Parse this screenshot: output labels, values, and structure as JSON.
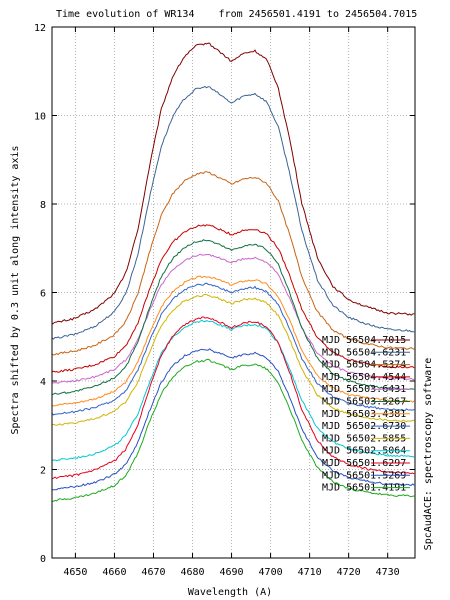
{
  "chart_data": {
    "type": "line",
    "title": "Time evolution of WR134    from 2456501.4191 to 2456504.7015",
    "xlabel": "Wavelength (A)",
    "ylabel": "Spectra shifted by 0.3 unit along intensity axis",
    "side_note": "SpcAudACE: spectroscopy software",
    "xlim": [
      4644,
      4737
    ],
    "ylim": [
      0,
      12
    ],
    "xticks": [
      4650,
      4660,
      4670,
      4680,
      4690,
      4700,
      4710,
      4720,
      4730
    ],
    "yticks": [
      0,
      2,
      4,
      6,
      8,
      10,
      12
    ],
    "grid": true,
    "legend_position": "right",
    "shape": {
      "x": [
        4644,
        4650,
        4655,
        4660,
        4663,
        4666,
        4669,
        4672,
        4675,
        4678,
        4681,
        4684,
        4687,
        4690,
        4693,
        4696,
        4699,
        4702,
        4705,
        4708,
        4712,
        4716,
        4720,
        4725,
        4730,
        4737
      ],
      "y": [
        0,
        0.06,
        0.16,
        0.34,
        0.58,
        1.06,
        1.78,
        2.42,
        2.8,
        3.02,
        3.14,
        3.17,
        3.07,
        2.96,
        3.05,
        3.08,
        2.98,
        2.66,
        2.06,
        1.36,
        0.74,
        0.42,
        0.27,
        0.18,
        0.12,
        0.1
      ]
    },
    "series": [
      {
        "label": "MJD 56504.7015",
        "color": "#800000",
        "baseline": 5.3,
        "amp": 2.0
      },
      {
        "label": "MJD 56504.6231",
        "color": "#3c6496",
        "baseline": 4.95,
        "amp": 1.8
      },
      {
        "label": "MJD 56504.5374",
        "color": "#c86414",
        "baseline": 4.6,
        "amp": 1.3
      },
      {
        "label": "MJD 56504.4544",
        "color": "#c80000",
        "baseline": 4.2,
        "amp": 1.05
      },
      {
        "label": "MJD 56503.6431",
        "color": "#cc66cc",
        "baseline": 3.95,
        "amp": 0.92
      },
      {
        "label": "MJD 56503.5267",
        "color": "#107040",
        "baseline": 3.7,
        "amp": 1.1
      },
      {
        "label": "MJD 56503.4381",
        "color": "#ff8c1e",
        "baseline": 3.45,
        "amp": 0.92
      },
      {
        "label": "MJD 56502.6730",
        "color": "#3264c8",
        "baseline": 3.25,
        "amp": 0.93
      },
      {
        "label": "MJD 56502.5855",
        "color": "#d0b400",
        "baseline": 3.0,
        "amp": 0.93
      },
      {
        "label": "MJD 56502.5064",
        "color": "#00c8d2",
        "baseline": 2.2,
        "amp": 1.0
      },
      {
        "label": "MJD 56501.6297",
        "color": "#e6001e",
        "baseline": 1.8,
        "amp": 1.15
      },
      {
        "label": "MJD 56501.5269",
        "color": "#2850c0",
        "baseline": 1.55,
        "amp": 1.0
      },
      {
        "label": "MJD 56501.4191",
        "color": "#1eaa1e",
        "baseline": 1.3,
        "amp": 1.0
      }
    ]
  }
}
